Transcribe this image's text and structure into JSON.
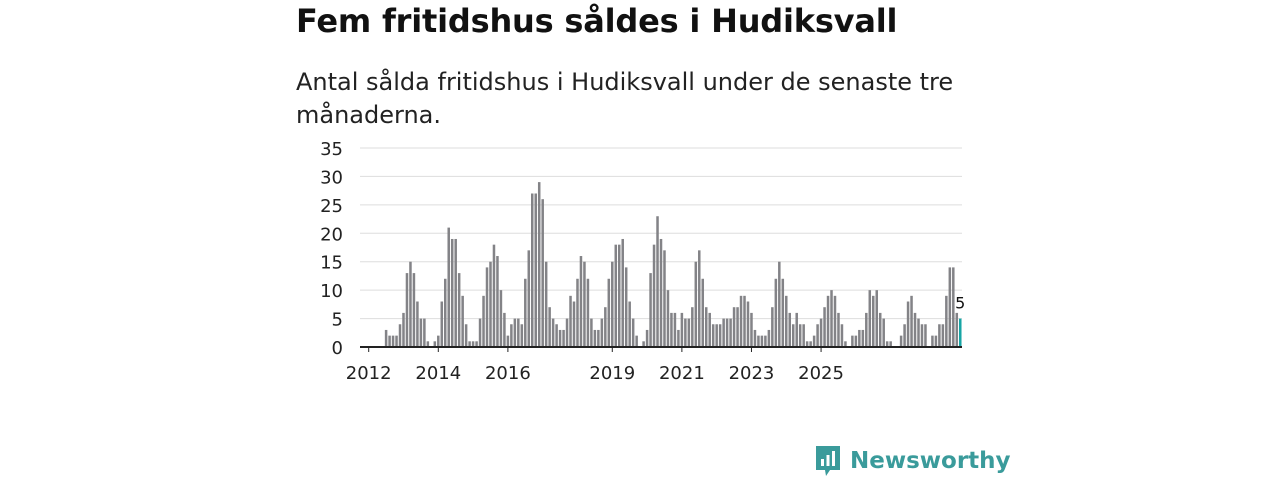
{
  "header": {
    "title": "Fem fritidshus såldes i Hudiksvall",
    "subtitle": "Antal sålda fritidshus i Hudiksvall under de senaste tre månaderna."
  },
  "brand": {
    "name": "Newsworthy",
    "icon": "newsworthy-logo-icon",
    "color": "#3a9b9b"
  },
  "colors": {
    "bar": "#838387",
    "highlight": "#17a5a5",
    "grid": "#dddddd",
    "axis": "#222222"
  },
  "chart_data": {
    "type": "bar",
    "title": "Fem fritidshus såldes i Hudiksvall",
    "ylim": [
      0,
      35
    ],
    "yticks": [
      0,
      5,
      10,
      15,
      20,
      25,
      30,
      35
    ],
    "xtick_labels": [
      {
        "label": "2012",
        "index": 2
      },
      {
        "label": "2014",
        "index": 22
      },
      {
        "label": "2016",
        "index": 42
      },
      {
        "label": "2019",
        "index": 72
      },
      {
        "label": "2021",
        "index": 92
      },
      {
        "label": "2023",
        "index": 112
      },
      {
        "label": "2025",
        "index": 132
      }
    ],
    "values": [
      0,
      0,
      0,
      0,
      0,
      0,
      0,
      3,
      2,
      2,
      2,
      4,
      6,
      13,
      15,
      13,
      8,
      5,
      5,
      1,
      0,
      1,
      2,
      8,
      12,
      21,
      19,
      19,
      13,
      9,
      4,
      1,
      1,
      1,
      5,
      9,
      14,
      15,
      18,
      16,
      10,
      6,
      2,
      4,
      5,
      5,
      4,
      12,
      17,
      27,
      27,
      29,
      26,
      15,
      7,
      5,
      4,
      3,
      3,
      5,
      9,
      8,
      12,
      16,
      15,
      12,
      5,
      3,
      3,
      5,
      7,
      12,
      15,
      18,
      18,
      19,
      14,
      8,
      5,
      2,
      0,
      1,
      3,
      13,
      18,
      23,
      19,
      17,
      10,
      6,
      6,
      3,
      6,
      5,
      5,
      7,
      15,
      17,
      12,
      7,
      6,
      4,
      4,
      4,
      5,
      5,
      5,
      7,
      7,
      9,
      9,
      8,
      6,
      3,
      2,
      2,
      2,
      3,
      7,
      12,
      15,
      12,
      9,
      6,
      4,
      6,
      4,
      4,
      1,
      1,
      2,
      4,
      5,
      7,
      9,
      10,
      9,
      6,
      4,
      1,
      0,
      2,
      2,
      3,
      3,
      6,
      10,
      9,
      10,
      6,
      5,
      1,
      1,
      0,
      0,
      2,
      4,
      8,
      9,
      6,
      5,
      4,
      4,
      0,
      2,
      2,
      4,
      4,
      9,
      14,
      14,
      6,
      5
    ],
    "highlight_value": 5,
    "highlight_label": "5"
  }
}
